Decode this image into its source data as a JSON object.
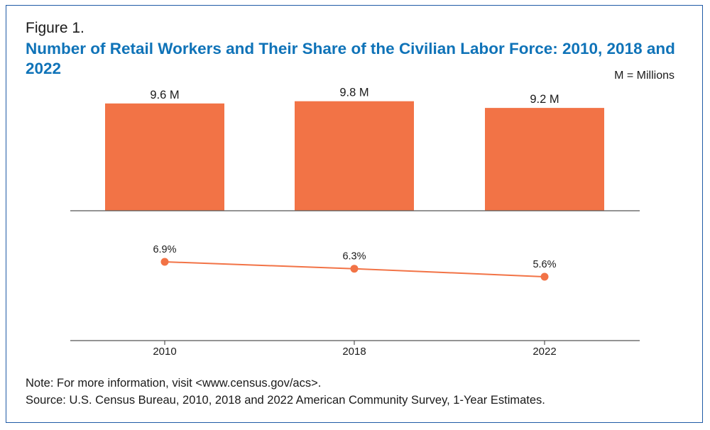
{
  "figure": {
    "label": "Figure 1.",
    "title": "Number of Retail Workers and Their Share of the Civilian Labor Force: 2010, 2018 and 2022",
    "unit_note": "M = Millions",
    "note": "Note: For more information, visit <www.census.gov/acs>.",
    "source": "Source: U.S. Census Bureau, 2010, 2018 and 2022 American Community Survey, 1-Year Estimates."
  },
  "colors": {
    "bar": "#f27346",
    "line": "#f27346",
    "axis": "#555555",
    "title": "#0f73b8"
  },
  "chart_data": [
    {
      "type": "bar",
      "categories": [
        "2010",
        "2018",
        "2022"
      ],
      "values": [
        9.6,
        9.8,
        9.2
      ],
      "data_labels": [
        "9.6 M",
        "9.8 M",
        "9.2 M"
      ],
      "unit": "Millions",
      "ylim": [
        0,
        10
      ]
    },
    {
      "type": "line",
      "categories": [
        "2010",
        "2018",
        "2022"
      ],
      "values": [
        6.9,
        6.3,
        5.6
      ],
      "data_labels": [
        "6.9%",
        "6.3%",
        "5.6%"
      ],
      "unit": "Percent"
    }
  ]
}
